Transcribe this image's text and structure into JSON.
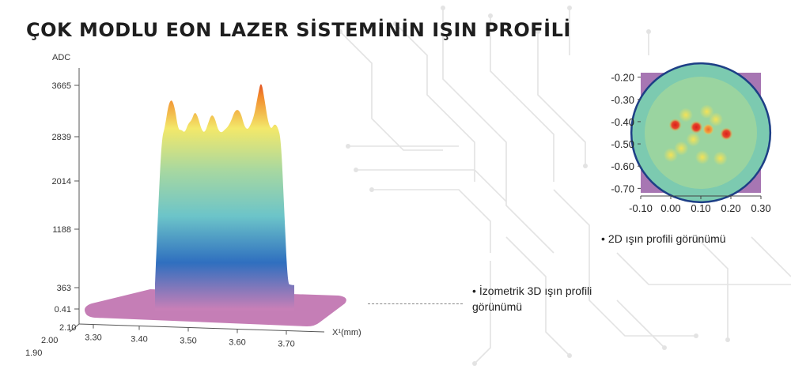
{
  "header": {
    "title": "ÇOK MODLU EON LAZER SİSTEMİNİN IŞIN PROFİLİ"
  },
  "chart_data": [
    {
      "type": "surface-3d",
      "ylabel": "ADC",
      "xlabel": "X¹(mm)",
      "z_ticks": [
        "0.41",
        "363",
        "1188",
        "2014",
        "2839",
        "3665"
      ],
      "x_ticks": [
        "3.30",
        "3.40",
        "3.50",
        "3.60",
        "3.70"
      ],
      "y_ticks": [
        "2.10",
        "2.00",
        "1.90"
      ],
      "zlim": [
        0.41,
        3665
      ],
      "xlim": [
        3.27,
        3.74
      ],
      "profile": {
        "x": [
          3.43,
          3.435,
          3.44,
          3.445,
          3.45,
          3.455,
          3.46,
          3.465,
          3.47,
          3.475,
          3.48,
          3.485,
          3.49,
          3.495,
          3.5,
          3.505,
          3.51,
          3.515,
          3.52,
          3.525,
          3.53,
          3.535,
          3.54,
          3.545,
          3.55,
          3.555,
          3.56,
          3.565,
          3.57,
          3.575,
          3.58,
          3.585,
          3.59,
          3.595,
          3.6,
          3.605,
          3.61,
          3.615,
          3.62,
          3.625,
          3.63,
          3.635,
          3.64
        ],
        "y": [
          420,
          1600,
          2800,
          3000,
          3350,
          3450,
          3300,
          2950,
          2950,
          2900,
          3050,
          3100,
          3250,
          3150,
          2950,
          2900,
          3050,
          3200,
          3150,
          2950,
          2900,
          2950,
          3000,
          3100,
          3250,
          3280,
          3200,
          3000,
          2950,
          3050,
          3200,
          3500,
          3750,
          3450,
          3100,
          2950,
          3050,
          3000,
          2800,
          1500,
          420,
          400,
          400
        ]
      },
      "colors": [
        "#c77fb7",
        "#2f6fbf",
        "#6cc4c9",
        "#a8d8a0",
        "#f3e86a",
        "#f28a2c",
        "#d8321e"
      ]
    },
    {
      "type": "heatmap",
      "y_ticks": [
        "-0.20",
        "-0.30",
        "-0.40",
        "-0.50",
        "-0.60",
        "-0.70"
      ],
      "x_ticks": [
        "-0.10",
        "0.00",
        "0.10",
        "0.20",
        "0.30"
      ],
      "xlim": [
        -0.1,
        0.3
      ],
      "ylim": [
        -0.72,
        -0.18
      ],
      "beam_center": [
        0.1,
        -0.45
      ],
      "beam_radius": 0.245,
      "background_color": "#a776b3",
      "hotspots": [
        {
          "x": 0.015,
          "y": -0.415,
          "level": "red"
        },
        {
          "x": 0.085,
          "y": -0.425,
          "level": "red"
        },
        {
          "x": 0.125,
          "y": -0.435,
          "level": "orange"
        },
        {
          "x": 0.185,
          "y": -0.455,
          "level": "red"
        },
        {
          "x": 0.05,
          "y": -0.37,
          "level": "yellow"
        },
        {
          "x": 0.12,
          "y": -0.355,
          "level": "yellow"
        },
        {
          "x": 0.035,
          "y": -0.52,
          "level": "yellow"
        },
        {
          "x": 0.105,
          "y": -0.56,
          "level": "yellow"
        },
        {
          "x": 0.15,
          "y": -0.39,
          "level": "yellow"
        },
        {
          "x": 0.075,
          "y": -0.48,
          "level": "yellow"
        },
        {
          "x": 0.0,
          "y": -0.55,
          "level": "yellow"
        },
        {
          "x": 0.165,
          "y": -0.565,
          "level": "yellow"
        }
      ]
    }
  ],
  "annotations": {
    "note_2d": "2D ışın profili görünümü",
    "note_3d": "İzometrik 3D ışın profili görünümü",
    "bullet": "•"
  }
}
